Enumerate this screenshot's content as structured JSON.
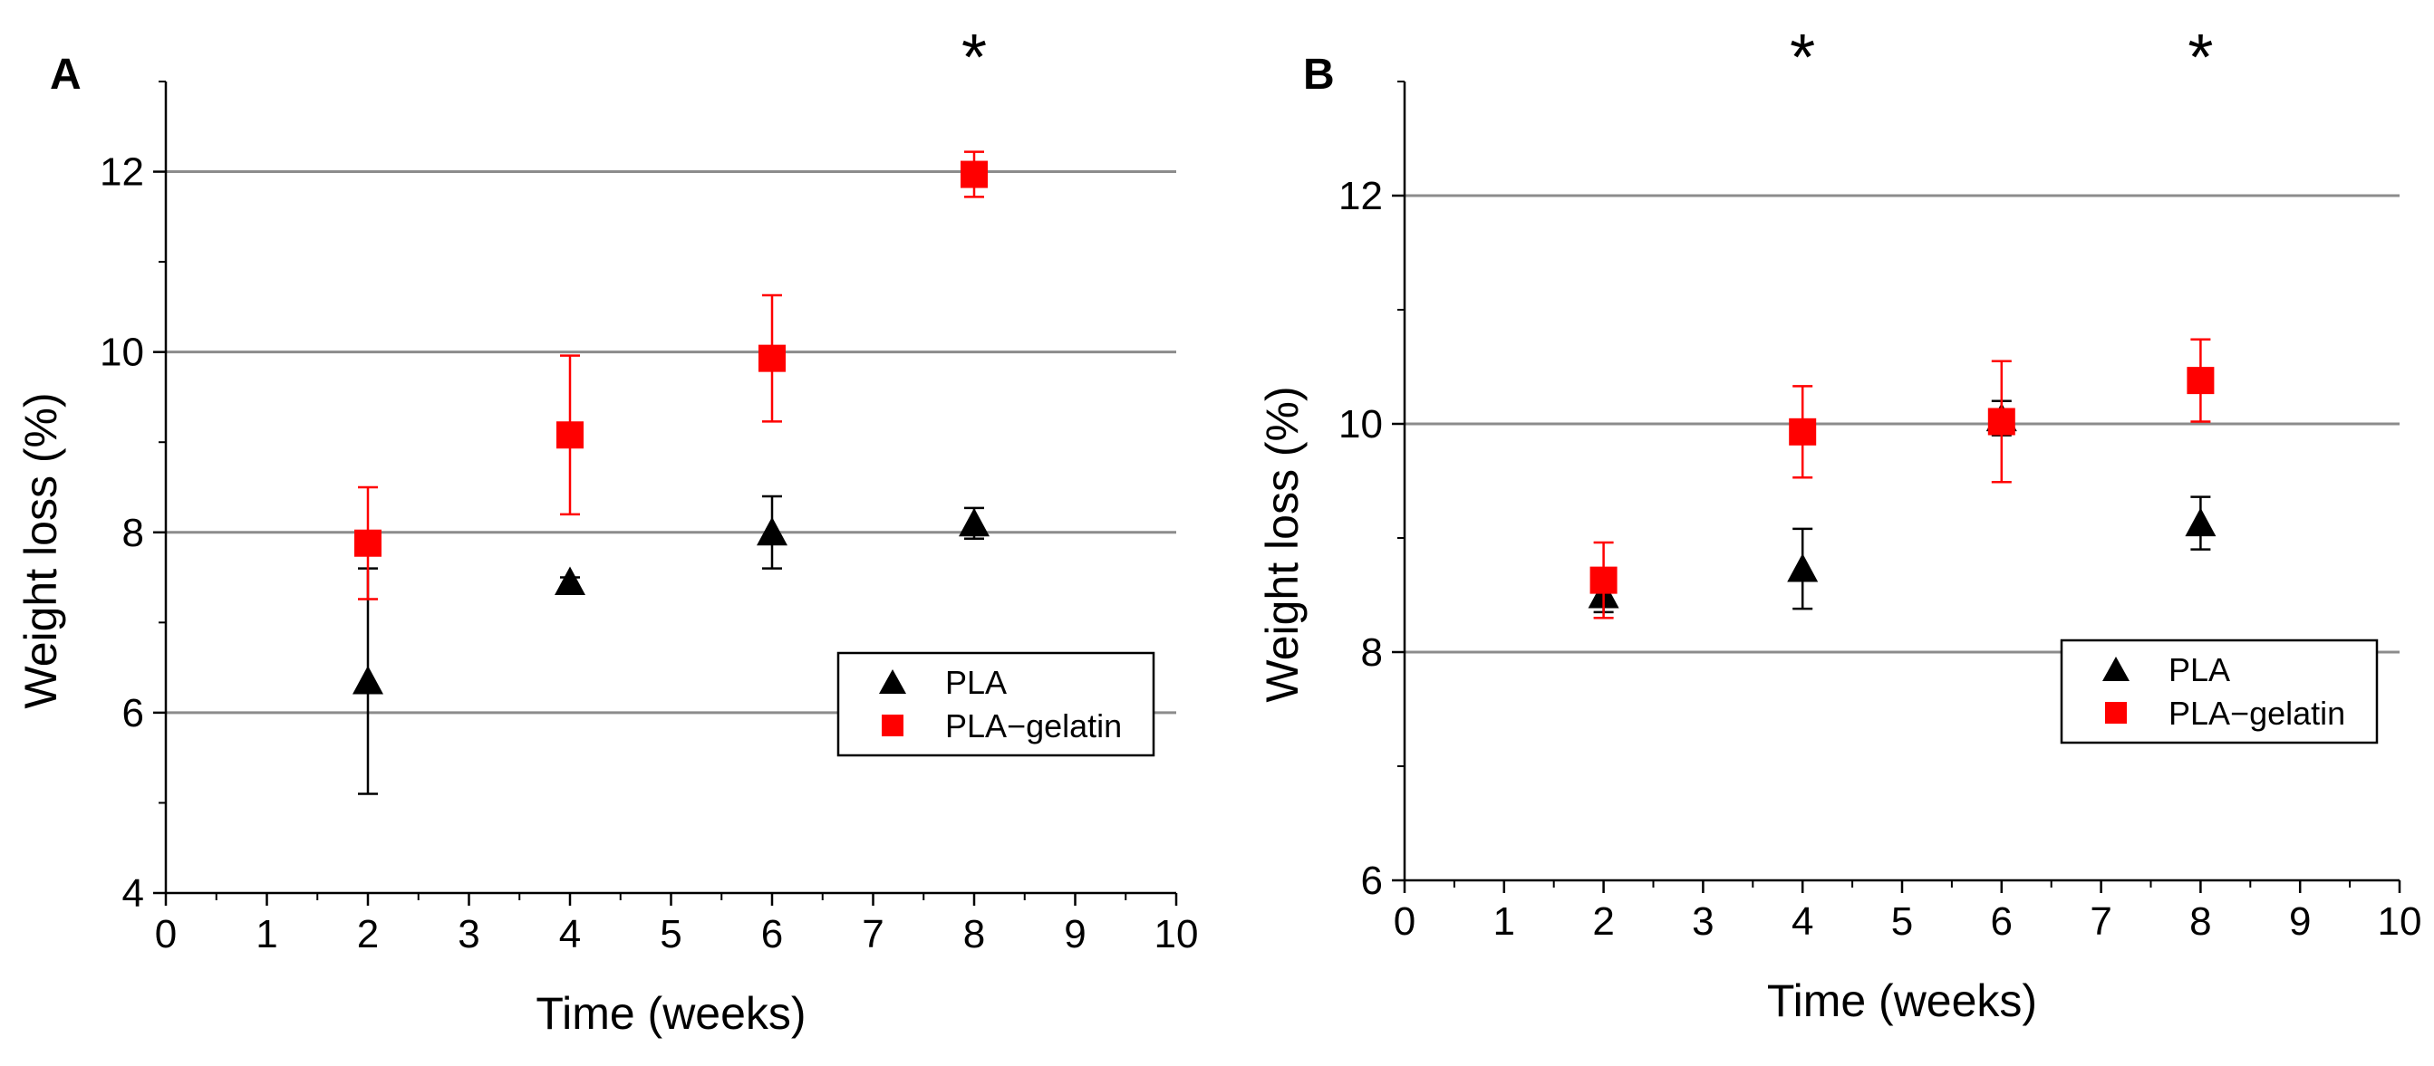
{
  "figure": {
    "background": "#ffffff",
    "colors": {
      "PLA": "#000000",
      "PLA-gelatin": "#ff0000",
      "grid": "#8c8c8c",
      "axis": "#000000"
    }
  },
  "chart_data": [
    {
      "type": "scatter",
      "panel_label": "A",
      "xlabel": "Time (weeks)",
      "ylabel": "Weight loss (%)",
      "xlim": [
        0,
        10
      ],
      "ylim": [
        4,
        13
      ],
      "x_ticks": [
        0,
        1,
        2,
        3,
        4,
        5,
        6,
        7,
        8,
        9,
        10
      ],
      "y_ticks": [
        4,
        6,
        8,
        10,
        12
      ],
      "grid": "horizontal",
      "legend_position": "lower-right",
      "legend": [
        "PLA",
        "PLA−gelatin"
      ],
      "series": [
        {
          "name": "PLA",
          "marker": "triangle",
          "color": "#000000",
          "x": [
            2,
            4,
            6,
            8
          ],
          "y": [
            6.35,
            7.45,
            8.0,
            8.1
          ],
          "err": [
            1.25,
            0.05,
            0.4,
            0.17
          ]
        },
        {
          "name": "PLA-gelatin",
          "marker": "square",
          "color": "#ff0000",
          "x": [
            2,
            4,
            6,
            8
          ],
          "y": [
            7.88,
            9.08,
            9.93,
            11.97
          ],
          "err": [
            0.62,
            0.88,
            0.7,
            0.25
          ]
        }
      ],
      "annotations": [
        {
          "x": 8,
          "text": "*"
        }
      ]
    },
    {
      "type": "scatter",
      "panel_label": "B",
      "xlabel": "Time (weeks)",
      "ylabel": "Weight loss (%)",
      "xlim": [
        0,
        10
      ],
      "ylim": [
        6,
        13
      ],
      "x_ticks": [
        0,
        1,
        2,
        3,
        4,
        5,
        6,
        7,
        8,
        9,
        10
      ],
      "y_ticks": [
        6,
        8,
        10,
        12
      ],
      "grid": "horizontal",
      "legend_position": "lower-right",
      "legend": [
        "PLA",
        "PLA−gelatin"
      ],
      "series": [
        {
          "name": "PLA",
          "marker": "triangle",
          "color": "#000000",
          "x": [
            2,
            4,
            6,
            8
          ],
          "y": [
            8.5,
            8.73,
            10.05,
            9.13
          ],
          "err": [
            0.15,
            0.35,
            0.15,
            0.23
          ]
        },
        {
          "name": "PLA-gelatin",
          "marker": "square",
          "color": "#ff0000",
          "x": [
            2,
            4,
            6,
            8
          ],
          "y": [
            8.63,
            9.93,
            10.02,
            10.38
          ],
          "err": [
            0.33,
            0.4,
            0.53,
            0.36
          ]
        }
      ],
      "annotations": [
        {
          "x": 4,
          "text": "*"
        },
        {
          "x": 8,
          "text": "*"
        }
      ]
    }
  ]
}
